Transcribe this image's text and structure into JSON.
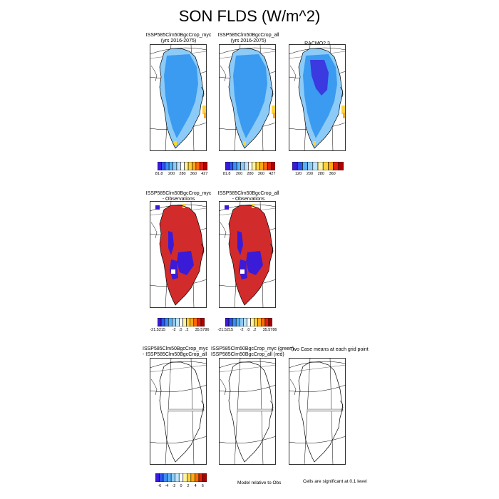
{
  "title": "SON FLDS (W/m^2)",
  "row1": {
    "panels": [
      {
        "label_line1": "ISSP585Clm50BgcCrop_myc",
        "label_line2": "(yrs 2016-2075)",
        "field": "model"
      },
      {
        "label_line1": "ISSP585Clm50BgcCrop_all",
        "label_line2": "(yrs 2016-2075)",
        "field": "model"
      },
      {
        "label_line1": "RACMO2.3",
        "label_line2": "",
        "field": "obs"
      }
    ],
    "legend_model_ticks": [
      "81.8",
      "200",
      "280",
      "360",
      "427"
    ],
    "legend_obs_ticks": [
      "120",
      "200",
      "280",
      "360"
    ]
  },
  "row2": {
    "panels": [
      {
        "label_line1": "ISSP585Clm50BgcCrop_myc",
        "label_line2": "- Observations"
      },
      {
        "label_line1": "ISSP585Clm50BgcCrop_all",
        "label_line2": "- Observations"
      }
    ],
    "legend_ticks": [
      "-21.5215",
      "-2",
      ".0",
      ".2",
      "35.5786"
    ]
  },
  "row3": {
    "panels": [
      {
        "label_line1": "ISSP585Clm50BgcCrop_myc",
        "label_line2": "- ISSP585Clm50BgcCrop_all"
      },
      {
        "label_line1": "ISSP585Clm50BgcCrop_myc (green)",
        "label_line2": "ISSP585Clm50BgcCrop_all (red)"
      },
      {
        "label_line1": "Two Case means at each grid point",
        "label_line2": ""
      }
    ],
    "legend_ticks": [
      "-6",
      "-4",
      "-2",
      "0",
      "2",
      "4",
      "6"
    ],
    "note_middle": "Model relative to Obs",
    "note_right": "Cells are significant at 0.1 level"
  },
  "colors": {
    "model_scale": [
      "#3a1bd8",
      "#2b54f0",
      "#3e8ef2",
      "#5ab0f5",
      "#8ccbf7",
      "#bfe4fb",
      "#ffffff",
      "#fff3a0",
      "#ffd23a",
      "#ffaa14",
      "#ff6a0a",
      "#e02010",
      "#b00000"
    ],
    "diff_scale": [
      "#3a1bd8",
      "#2b54f0",
      "#3e8ef2",
      "#5ab0f5",
      "#8ccbf7",
      "#bfe4fb",
      "#ffffff",
      "#fff3a0",
      "#ffd23a",
      "#ffaa14",
      "#ff6a0a",
      "#e02010",
      "#b00000"
    ],
    "model_fill": "#3a9bf0",
    "model_edge": "#8ccbf7",
    "obs_core": "#3a3ae0",
    "diff_fill": "#d22b2b",
    "diff_neg": "#3a1bd8"
  }
}
